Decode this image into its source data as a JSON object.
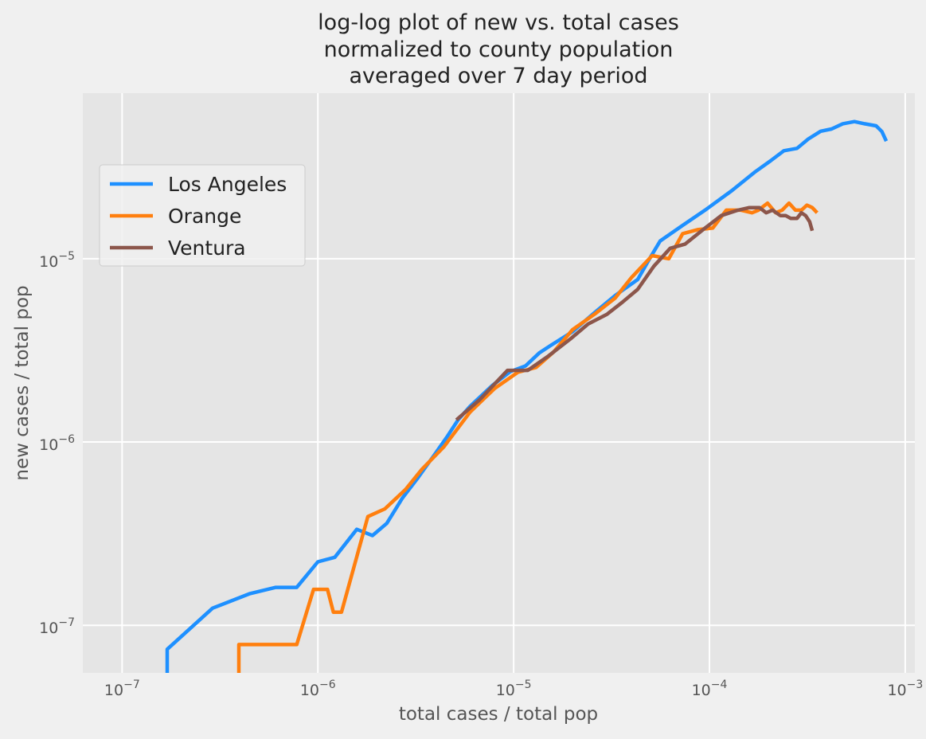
{
  "chart_data": {
    "type": "line",
    "title": [
      "log-log plot of new vs. total cases",
      "normalized to county population",
      "averaged over 7 day period"
    ],
    "xlabel": "total cases / total pop",
    "ylabel": "new cases / total pop",
    "xscale": "log",
    "yscale": "log",
    "xlim": [
      6.3e-08,
      0.00112
    ],
    "ylim": [
      5.5e-08,
      8e-05
    ],
    "grid": true,
    "legend_position": "upper-left",
    "x_ticks": [
      {
        "value": 1e-07,
        "base": "10",
        "exp": "−7"
      },
      {
        "value": 1e-06,
        "base": "10",
        "exp": "−6"
      },
      {
        "value": 1e-05,
        "base": "10",
        "exp": "−5"
      },
      {
        "value": 0.0001,
        "base": "10",
        "exp": "−4"
      },
      {
        "value": 0.001,
        "base": "10",
        "exp": "−3"
      }
    ],
    "y_ticks": [
      {
        "value": 1e-07,
        "base": "10",
        "exp": "−7"
      },
      {
        "value": 1e-06,
        "base": "10",
        "exp": "−6"
      },
      {
        "value": 1e-05,
        "base": "10",
        "exp": "−5"
      }
    ],
    "series": [
      {
        "name": "Los Angeles",
        "color": "#1e90ff",
        "points": [
          [
            1.7e-07,
            5.5e-08
          ],
          [
            1.7e-07,
            7.4e-08
          ],
          [
            2.9e-07,
            1.24e-07
          ],
          [
            4.5e-07,
            1.49e-07
          ],
          [
            6.1e-07,
            1.61e-07
          ],
          [
            7.8e-07,
            1.61e-07
          ],
          [
            1e-06,
            2.22e-07
          ],
          [
            1.22e-06,
            2.35e-07
          ],
          [
            1.58e-06,
            3.34e-07
          ],
          [
            1.9e-06,
            3.09e-07
          ],
          [
            2.25e-06,
            3.6e-07
          ],
          [
            2.7e-06,
            4.94e-07
          ],
          [
            3.25e-06,
            6.4e-07
          ],
          [
            3.9e-06,
            8.4e-07
          ],
          [
            4.6e-06,
            1.08e-06
          ],
          [
            5.2e-06,
            1.32e-06
          ],
          [
            6e-06,
            1.57e-06
          ],
          [
            7.8e-06,
            2.04e-06
          ],
          [
            9.6e-06,
            2.42e-06
          ],
          [
            1.15e-05,
            2.6e-06
          ],
          [
            1.35e-05,
            3.06e-06
          ],
          [
            1.55e-05,
            3.37e-06
          ],
          [
            2e-05,
            4e-06
          ],
          [
            2.6e-05,
            5.1e-06
          ],
          [
            3.3e-05,
            6.3e-06
          ],
          [
            4.3e-05,
            7.7e-06
          ],
          [
            5e-05,
            1.02e-05
          ],
          [
            5.6e-05,
            1.25e-05
          ],
          [
            7.3e-05,
            1.52e-05
          ],
          [
            9.5e-05,
            1.84e-05
          ],
          [
            0.00013,
            2.35e-05
          ],
          [
            0.000172,
            2.99e-05
          ],
          [
            0.000205,
            3.42e-05
          ],
          [
            0.00024,
            3.88e-05
          ],
          [
            0.00028,
            4e-05
          ],
          [
            0.00032,
            4.5e-05
          ],
          [
            0.00037,
            4.96e-05
          ],
          [
            0.00042,
            5.1e-05
          ],
          [
            0.00048,
            5.45e-05
          ],
          [
            0.00055,
            5.6e-05
          ],
          [
            0.00062,
            5.45e-05
          ],
          [
            0.00071,
            5.31e-05
          ],
          [
            0.00076,
            4.94e-05
          ],
          [
            0.0008,
            4.38e-05
          ]
        ]
      },
      {
        "name": "Orange",
        "color": "#ff7f0e",
        "points": [
          [
            3.95e-07,
            5.5e-08
          ],
          [
            3.95e-07,
            7.85e-08
          ],
          [
            5e-07,
            7.85e-08
          ],
          [
            6.5e-07,
            7.85e-08
          ],
          [
            7.8e-07,
            7.85e-08
          ],
          [
            9.5e-07,
            1.57e-07
          ],
          [
            1.12e-06,
            1.57e-07
          ],
          [
            1.2e-06,
            1.18e-07
          ],
          [
            1.32e-06,
            1.18e-07
          ],
          [
            1.8e-06,
            3.92e-07
          ],
          [
            2.2e-06,
            4.32e-07
          ],
          [
            2.8e-06,
            5.5e-07
          ],
          [
            3.4e-06,
            7.1e-07
          ],
          [
            4.4e-06,
            9.4e-07
          ],
          [
            6e-06,
            1.46e-06
          ],
          [
            8e-06,
            1.96e-06
          ],
          [
            1.05e-05,
            2.4e-06
          ],
          [
            1.3e-05,
            2.55e-06
          ],
          [
            1.6e-05,
            3.1e-06
          ],
          [
            2e-05,
            4.1e-06
          ],
          [
            2.6e-05,
            5e-06
          ],
          [
            3.3e-05,
            6.1e-06
          ],
          [
            4e-05,
            7.9e-06
          ],
          [
            5.1e-05,
            1.04e-05
          ],
          [
            6.2e-05,
            1e-05
          ],
          [
            7.3e-05,
            1.37e-05
          ],
          [
            8.7e-05,
            1.44e-05
          ],
          [
            0.000104,
            1.47e-05
          ],
          [
            0.000122,
            1.84e-05
          ],
          [
            0.000145,
            1.84e-05
          ],
          [
            0.000165,
            1.78e-05
          ],
          [
            0.000178,
            1.84e-05
          ],
          [
            0.000198,
            2.01e-05
          ],
          [
            0.000218,
            1.78e-05
          ],
          [
            0.000235,
            1.84e-05
          ],
          [
            0.000255,
            2.01e-05
          ],
          [
            0.000275,
            1.84e-05
          ],
          [
            0.000295,
            1.84e-05
          ],
          [
            0.000315,
            1.96e-05
          ],
          [
            0.000335,
            1.9e-05
          ],
          [
            0.000355,
            1.78e-05
          ]
        ]
      },
      {
        "name": "Ventura",
        "color": "#8c564b",
        "points": [
          [
            5.1e-06,
            1.32e-06
          ],
          [
            6.7e-06,
            1.7e-06
          ],
          [
            9.3e-06,
            2.46e-06
          ],
          [
            1.18e-05,
            2.46e-06
          ],
          [
            1.5e-05,
            2.94e-06
          ],
          [
            1.95e-05,
            3.65e-06
          ],
          [
            2.4e-05,
            4.4e-06
          ],
          [
            3e-05,
            4.98e-06
          ],
          [
            3.6e-05,
            5.8e-06
          ],
          [
            4.3e-05,
            6.8e-06
          ],
          [
            5.2e-05,
            9.1e-06
          ],
          [
            6.3e-05,
            1.14e-05
          ],
          [
            7.5e-05,
            1.2e-05
          ],
          [
            9.5e-05,
            1.47e-05
          ],
          [
            0.000115,
            1.72e-05
          ],
          [
            0.00014,
            1.84e-05
          ],
          [
            0.00016,
            1.9e-05
          ],
          [
            0.00018,
            1.9e-05
          ],
          [
            0.000195,
            1.78e-05
          ],
          [
            0.00021,
            1.84e-05
          ],
          [
            0.00023,
            1.72e-05
          ],
          [
            0.000245,
            1.72e-05
          ],
          [
            0.00026,
            1.66e-05
          ],
          [
            0.00028,
            1.66e-05
          ],
          [
            0.000295,
            1.78e-05
          ],
          [
            0.00031,
            1.72e-05
          ],
          [
            0.000325,
            1.59e-05
          ],
          [
            0.000335,
            1.42e-05
          ]
        ]
      }
    ]
  }
}
